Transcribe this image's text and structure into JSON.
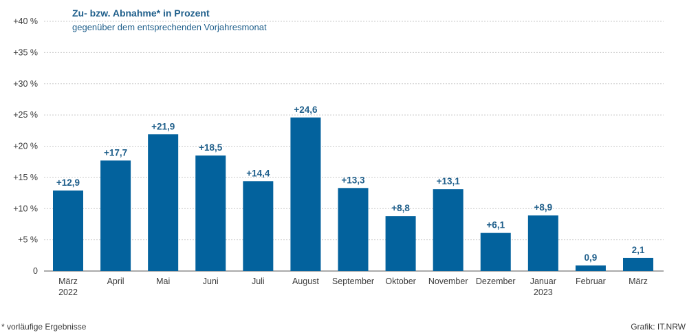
{
  "chart_data": {
    "type": "bar",
    "title": "Zu- bzw. Abnahme* in Prozent",
    "subtitle": "gegenüber dem entsprechenden Vorjahresmonat",
    "categories": [
      [
        "März",
        "2022"
      ],
      [
        "April"
      ],
      [
        "Mai"
      ],
      [
        "Juni"
      ],
      [
        "Juli"
      ],
      [
        "August"
      ],
      [
        "September"
      ],
      [
        "Oktober"
      ],
      [
        "November"
      ],
      [
        "Dezember"
      ],
      [
        "Januar",
        "2023"
      ],
      [
        "Februar"
      ],
      [
        "März"
      ]
    ],
    "values": [
      12.9,
      17.7,
      21.9,
      18.5,
      14.4,
      24.6,
      13.3,
      8.8,
      13.1,
      6.1,
      8.9,
      0.9,
      2.1
    ],
    "value_labels": [
      "+12,9",
      "+17,7",
      "+21,9",
      "+18,5",
      "+14,4",
      "+24,6",
      "+13,3",
      "+8,8",
      "+13,1",
      "+6,1",
      "+8,9",
      "0,9",
      "2,1"
    ],
    "yticks": [
      {
        "value": 0,
        "label": "0"
      },
      {
        "value": 5,
        "label": "+5 %"
      },
      {
        "value": 10,
        "label": "+10 %"
      },
      {
        "value": 15,
        "label": "+15 %"
      },
      {
        "value": 20,
        "label": "+20 %"
      },
      {
        "value": 25,
        "label": "+25 %"
      },
      {
        "value": 30,
        "label": "+30 %"
      },
      {
        "value": 35,
        "label": "+35 %"
      },
      {
        "value": 40,
        "label": "+40 %"
      }
    ],
    "ylim": [
      0,
      40
    ],
    "grid": true,
    "bar_color": "#03629d",
    "label_color": "#1f5f8b"
  },
  "footnote": "*  vorläufige Ergebnisse",
  "credit": "Grafik: IT.NRW"
}
